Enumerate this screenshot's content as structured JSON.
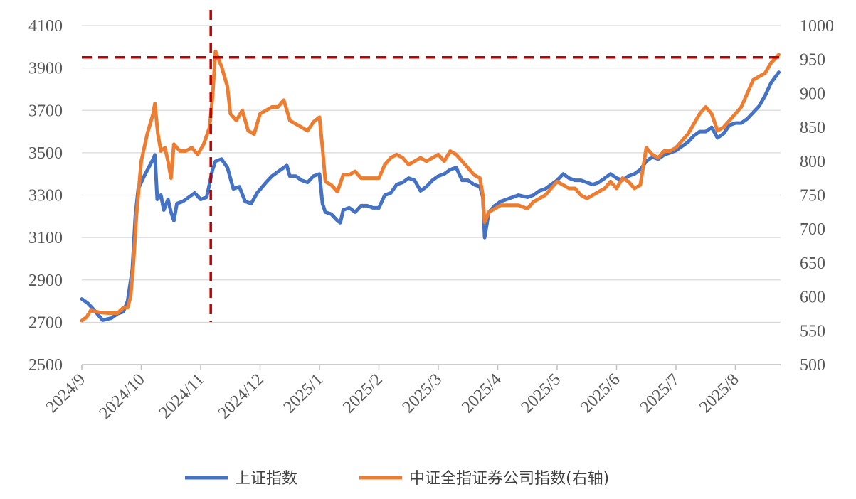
{
  "chart_data": {
    "type": "line",
    "title": "",
    "xlabel": "",
    "ylabel": "",
    "y_left": {
      "range": [
        2500,
        4100
      ],
      "ticks": [
        2500,
        2700,
        2900,
        3100,
        3300,
        3500,
        3700,
        3900,
        4100
      ]
    },
    "y_right": {
      "range": [
        500,
        1000
      ],
      "ticks": [
        500,
        550,
        600,
        650,
        700,
        750,
        800,
        850,
        900,
        950,
        1000
      ]
    },
    "x_ticks": [
      "2024/9",
      "2024/10",
      "2024/11",
      "2024/12",
      "2025/1",
      "2025/2",
      "2025/3",
      "2025/4",
      "2025/5",
      "2025/6",
      "2025/7",
      "2025/8"
    ],
    "x_range": [
      0,
      11.85
    ],
    "grid": "horizontal",
    "legend_position": "bottom",
    "series": [
      {
        "name": "上证指数",
        "axis": "left",
        "color": "#4472C4",
        "points": [
          [
            0,
            2810
          ],
          [
            0.1,
            2790
          ],
          [
            0.2,
            2760
          ],
          [
            0.35,
            2710
          ],
          [
            0.5,
            2720
          ],
          [
            0.6,
            2740
          ],
          [
            0.7,
            2750
          ],
          [
            0.77,
            2800
          ],
          [
            0.85,
            2950
          ],
          [
            0.9,
            3200
          ],
          [
            0.95,
            3330
          ],
          [
            1.05,
            3390
          ],
          [
            1.2,
            3470
          ],
          [
            1.23,
            3490
          ],
          [
            1.27,
            3280
          ],
          [
            1.33,
            3300
          ],
          [
            1.38,
            3230
          ],
          [
            1.45,
            3280
          ],
          [
            1.5,
            3220
          ],
          [
            1.55,
            3180
          ],
          [
            1.6,
            3260
          ],
          [
            1.7,
            3270
          ],
          [
            1.8,
            3290
          ],
          [
            1.9,
            3310
          ],
          [
            2.0,
            3280
          ],
          [
            2.1,
            3290
          ],
          [
            2.2,
            3420
          ],
          [
            2.25,
            3460
          ],
          [
            2.35,
            3470
          ],
          [
            2.45,
            3430
          ],
          [
            2.55,
            3330
          ],
          [
            2.65,
            3340
          ],
          [
            2.75,
            3270
          ],
          [
            2.85,
            3260
          ],
          [
            2.95,
            3310
          ],
          [
            3.1,
            3360
          ],
          [
            3.2,
            3390
          ],
          [
            3.35,
            3420
          ],
          [
            3.45,
            3440
          ],
          [
            3.5,
            3390
          ],
          [
            3.6,
            3390
          ],
          [
            3.7,
            3370
          ],
          [
            3.8,
            3360
          ],
          [
            3.9,
            3390
          ],
          [
            4.0,
            3400
          ],
          [
            4.05,
            3260
          ],
          [
            4.1,
            3220
          ],
          [
            4.2,
            3210
          ],
          [
            4.3,
            3180
          ],
          [
            4.35,
            3170
          ],
          [
            4.4,
            3230
          ],
          [
            4.5,
            3240
          ],
          [
            4.6,
            3220
          ],
          [
            4.7,
            3250
          ],
          [
            4.8,
            3250
          ],
          [
            4.9,
            3240
          ],
          [
            5.0,
            3240
          ],
          [
            5.1,
            3300
          ],
          [
            5.2,
            3310
          ],
          [
            5.3,
            3350
          ],
          [
            5.4,
            3360
          ],
          [
            5.5,
            3380
          ],
          [
            5.6,
            3370
          ],
          [
            5.7,
            3320
          ],
          [
            5.8,
            3340
          ],
          [
            5.9,
            3370
          ],
          [
            6.0,
            3390
          ],
          [
            6.1,
            3400
          ],
          [
            6.2,
            3420
          ],
          [
            6.3,
            3430
          ],
          [
            6.4,
            3370
          ],
          [
            6.5,
            3370
          ],
          [
            6.6,
            3350
          ],
          [
            6.7,
            3340
          ],
          [
            6.75,
            3290
          ],
          [
            6.78,
            3100
          ],
          [
            6.85,
            3220
          ],
          [
            6.95,
            3250
          ],
          [
            7.05,
            3270
          ],
          [
            7.15,
            3280
          ],
          [
            7.25,
            3290
          ],
          [
            7.35,
            3300
          ],
          [
            7.5,
            3290
          ],
          [
            7.6,
            3300
          ],
          [
            7.7,
            3320
          ],
          [
            7.8,
            3330
          ],
          [
            7.9,
            3350
          ],
          [
            8.0,
            3370
          ],
          [
            8.1,
            3400
          ],
          [
            8.2,
            3380
          ],
          [
            8.3,
            3370
          ],
          [
            8.4,
            3370
          ],
          [
            8.5,
            3360
          ],
          [
            8.6,
            3350
          ],
          [
            8.7,
            3360
          ],
          [
            8.8,
            3380
          ],
          [
            8.9,
            3400
          ],
          [
            9.0,
            3380
          ],
          [
            9.1,
            3370
          ],
          [
            9.2,
            3390
          ],
          [
            9.3,
            3400
          ],
          [
            9.4,
            3420
          ],
          [
            9.5,
            3460
          ],
          [
            9.6,
            3480
          ],
          [
            9.7,
            3470
          ],
          [
            9.8,
            3490
          ],
          [
            9.9,
            3500
          ],
          [
            10.0,
            3510
          ],
          [
            10.1,
            3530
          ],
          [
            10.2,
            3550
          ],
          [
            10.3,
            3580
          ],
          [
            10.4,
            3600
          ],
          [
            10.5,
            3600
          ],
          [
            10.6,
            3620
          ],
          [
            10.7,
            3570
          ],
          [
            10.8,
            3590
          ],
          [
            10.9,
            3630
          ],
          [
            11.0,
            3640
          ],
          [
            11.1,
            3640
          ],
          [
            11.2,
            3660
          ],
          [
            11.3,
            3690
          ],
          [
            11.4,
            3720
          ],
          [
            11.5,
            3770
          ],
          [
            11.6,
            3830
          ],
          [
            11.73,
            3880
          ]
        ]
      },
      {
        "name": "中证全指证券公司指数(右轴)",
        "axis": "right",
        "color": "#ED7D31",
        "points": [
          [
            0,
            565
          ],
          [
            0.08,
            570
          ],
          [
            0.15,
            580
          ],
          [
            0.3,
            577
          ],
          [
            0.45,
            576
          ],
          [
            0.6,
            576
          ],
          [
            0.7,
            584
          ],
          [
            0.77,
            584
          ],
          [
            0.82,
            600
          ],
          [
            0.87,
            650
          ],
          [
            0.92,
            720
          ],
          [
            1.0,
            800
          ],
          [
            1.1,
            840
          ],
          [
            1.2,
            870
          ],
          [
            1.23,
            885
          ],
          [
            1.28,
            840
          ],
          [
            1.33,
            815
          ],
          [
            1.4,
            820
          ],
          [
            1.45,
            800
          ],
          [
            1.5,
            775
          ],
          [
            1.55,
            825
          ],
          [
            1.65,
            815
          ],
          [
            1.75,
            815
          ],
          [
            1.85,
            820
          ],
          [
            1.95,
            810
          ],
          [
            2.05,
            825
          ],
          [
            2.15,
            850
          ],
          [
            2.2,
            895
          ],
          [
            2.25,
            962
          ],
          [
            2.35,
            940
          ],
          [
            2.45,
            910
          ],
          [
            2.5,
            870
          ],
          [
            2.6,
            860
          ],
          [
            2.7,
            875
          ],
          [
            2.8,
            845
          ],
          [
            2.9,
            840
          ],
          [
            3.0,
            870
          ],
          [
            3.1,
            875
          ],
          [
            3.2,
            880
          ],
          [
            3.3,
            880
          ],
          [
            3.4,
            890
          ],
          [
            3.5,
            860
          ],
          [
            3.6,
            855
          ],
          [
            3.7,
            850
          ],
          [
            3.8,
            845
          ],
          [
            3.9,
            858
          ],
          [
            4.0,
            865
          ],
          [
            4.05,
            820
          ],
          [
            4.1,
            770
          ],
          [
            4.2,
            765
          ],
          [
            4.3,
            755
          ],
          [
            4.4,
            780
          ],
          [
            4.5,
            780
          ],
          [
            4.6,
            785
          ],
          [
            4.7,
            775
          ],
          [
            4.8,
            775
          ],
          [
            4.9,
            775
          ],
          [
            5.0,
            775
          ],
          [
            5.1,
            795
          ],
          [
            5.2,
            805
          ],
          [
            5.3,
            810
          ],
          [
            5.4,
            805
          ],
          [
            5.5,
            795
          ],
          [
            5.6,
            800
          ],
          [
            5.7,
            805
          ],
          [
            5.8,
            800
          ],
          [
            5.9,
            805
          ],
          [
            6.0,
            810
          ],
          [
            6.1,
            800
          ],
          [
            6.2,
            815
          ],
          [
            6.3,
            810
          ],
          [
            6.4,
            800
          ],
          [
            6.5,
            790
          ],
          [
            6.6,
            780
          ],
          [
            6.7,
            775
          ],
          [
            6.75,
            750
          ],
          [
            6.78,
            710
          ],
          [
            6.85,
            725
          ],
          [
            6.95,
            730
          ],
          [
            7.05,
            735
          ],
          [
            7.15,
            735
          ],
          [
            7.25,
            735
          ],
          [
            7.35,
            735
          ],
          [
            7.5,
            730
          ],
          [
            7.6,
            740
          ],
          [
            7.7,
            745
          ],
          [
            7.8,
            750
          ],
          [
            7.9,
            760
          ],
          [
            8.0,
            770
          ],
          [
            8.1,
            765
          ],
          [
            8.2,
            760
          ],
          [
            8.3,
            760
          ],
          [
            8.4,
            750
          ],
          [
            8.5,
            745
          ],
          [
            8.6,
            750
          ],
          [
            8.7,
            755
          ],
          [
            8.8,
            760
          ],
          [
            8.9,
            770
          ],
          [
            9.0,
            760
          ],
          [
            9.1,
            775
          ],
          [
            9.2,
            770
          ],
          [
            9.3,
            760
          ],
          [
            9.4,
            765
          ],
          [
            9.5,
            820
          ],
          [
            9.6,
            810
          ],
          [
            9.7,
            805
          ],
          [
            9.8,
            815
          ],
          [
            9.9,
            815
          ],
          [
            10.0,
            820
          ],
          [
            10.1,
            830
          ],
          [
            10.2,
            840
          ],
          [
            10.3,
            855
          ],
          [
            10.4,
            870
          ],
          [
            10.5,
            880
          ],
          [
            10.6,
            870
          ],
          [
            10.7,
            845
          ],
          [
            10.8,
            850
          ],
          [
            10.9,
            860
          ],
          [
            11.0,
            870
          ],
          [
            11.1,
            880
          ],
          [
            11.2,
            900
          ],
          [
            11.3,
            920
          ],
          [
            11.4,
            925
          ],
          [
            11.5,
            930
          ],
          [
            11.6,
            945
          ],
          [
            11.73,
            957
          ]
        ]
      }
    ],
    "reference_lines": [
      {
        "orientation": "horizontal",
        "axis": "left",
        "value": 3950,
        "color": "#C00000",
        "style": "dashed"
      },
      {
        "orientation": "vertical",
        "x": 2.17,
        "color": "#C00000",
        "style": "dashed"
      }
    ]
  }
}
